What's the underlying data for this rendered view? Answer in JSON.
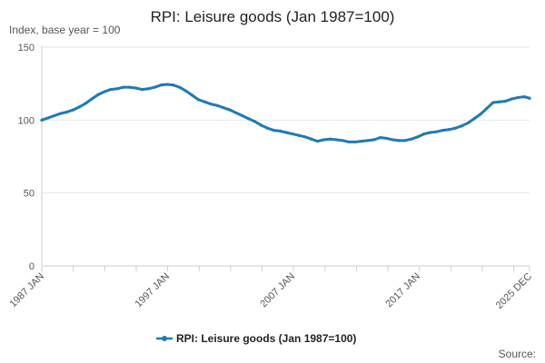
{
  "chart_data": {
    "type": "line",
    "title": "RPI: Leisure goods (Jan 1987=100)",
    "subtitle": "Index, base year = 100",
    "ylim": [
      0,
      150
    ],
    "yticks": [
      0,
      50,
      100,
      150
    ],
    "xlim": [
      "1987-01",
      "2025-12"
    ],
    "xtick_labels": [
      "1987 JAN",
      "1997 JAN",
      "2007 JAN",
      "2017 JAN",
      "2025 DEC"
    ],
    "xtick_positions": [
      "1987-01",
      "1997-01",
      "2007-01",
      "2017-01",
      "2025-12"
    ],
    "grid": true,
    "legend": "bottom",
    "source_label": "Source:",
    "colors": {
      "series": "#1f7ab5",
      "grid": "#e6e6e6",
      "axis": "#cccccc"
    },
    "series": [
      {
        "name": "RPI: Leisure goods (Jan 1987=100)",
        "points": [
          [
            "1987-01",
            100.0
          ],
          [
            "1987-07",
            101.5
          ],
          [
            "1988-01",
            103.0
          ],
          [
            "1988-07",
            104.5
          ],
          [
            "1989-01",
            105.5
          ],
          [
            "1989-07",
            107.0
          ],
          [
            "1990-01",
            109.0
          ],
          [
            "1990-07",
            111.5
          ],
          [
            "1991-01",
            114.5
          ],
          [
            "1991-07",
            117.5
          ],
          [
            "1992-01",
            119.5
          ],
          [
            "1992-07",
            121.0
          ],
          [
            "1993-01",
            121.5
          ],
          [
            "1993-07",
            122.5
          ],
          [
            "1994-01",
            122.5
          ],
          [
            "1994-07",
            122.0
          ],
          [
            "1995-01",
            121.0
          ],
          [
            "1995-07",
            121.5
          ],
          [
            "1996-01",
            122.5
          ],
          [
            "1996-07",
            124.0
          ],
          [
            "1997-01",
            124.5
          ],
          [
            "1997-07",
            124.0
          ],
          [
            "1998-01",
            122.5
          ],
          [
            "1998-07",
            120.0
          ],
          [
            "1999-01",
            117.0
          ],
          [
            "1999-07",
            114.0
          ],
          [
            "2000-01",
            112.5
          ],
          [
            "2000-07",
            111.0
          ],
          [
            "2001-01",
            110.0
          ],
          [
            "2001-07",
            108.5
          ],
          [
            "2002-01",
            107.0
          ],
          [
            "2002-07",
            105.0
          ],
          [
            "2003-01",
            103.0
          ],
          [
            "2003-07",
            101.0
          ],
          [
            "2004-01",
            99.0
          ],
          [
            "2004-07",
            96.5
          ],
          [
            "2005-01",
            94.5
          ],
          [
            "2005-07",
            93.0
          ],
          [
            "2006-01",
            92.5
          ],
          [
            "2006-07",
            91.5
          ],
          [
            "2007-01",
            90.5
          ],
          [
            "2007-07",
            89.5
          ],
          [
            "2008-01",
            88.5
          ],
          [
            "2008-07",
            87.0
          ],
          [
            "2009-01",
            85.5
          ],
          [
            "2009-07",
            86.5
          ],
          [
            "2010-01",
            87.0
          ],
          [
            "2010-07",
            86.5
          ],
          [
            "2011-01",
            86.0
          ],
          [
            "2011-07",
            85.0
          ],
          [
            "2012-01",
            85.0
          ],
          [
            "2012-07",
            85.5
          ],
          [
            "2013-01",
            86.0
          ],
          [
            "2013-07",
            86.5
          ],
          [
            "2014-01",
            88.0
          ],
          [
            "2014-07",
            87.5
          ],
          [
            "2015-01",
            86.5
          ],
          [
            "2015-07",
            86.0
          ],
          [
            "2016-01",
            86.0
          ],
          [
            "2016-07",
            87.0
          ],
          [
            "2017-01",
            88.5
          ],
          [
            "2017-07",
            90.5
          ],
          [
            "2018-01",
            91.5
          ],
          [
            "2018-07",
            92.0
          ],
          [
            "2019-01",
            93.0
          ],
          [
            "2019-07",
            93.5
          ],
          [
            "2020-01",
            94.5
          ],
          [
            "2020-07",
            96.0
          ],
          [
            "2021-01",
            98.0
          ],
          [
            "2021-07",
            101.0
          ],
          [
            "2022-01",
            104.0
          ],
          [
            "2022-07",
            108.0
          ],
          [
            "2023-01",
            112.0
          ],
          [
            "2023-07",
            112.5
          ],
          [
            "2024-01",
            113.0
          ],
          [
            "2024-07",
            114.5
          ],
          [
            "2025-01",
            115.5
          ],
          [
            "2025-07",
            116.0
          ],
          [
            "2025-12",
            115.0
          ]
        ]
      }
    ]
  }
}
